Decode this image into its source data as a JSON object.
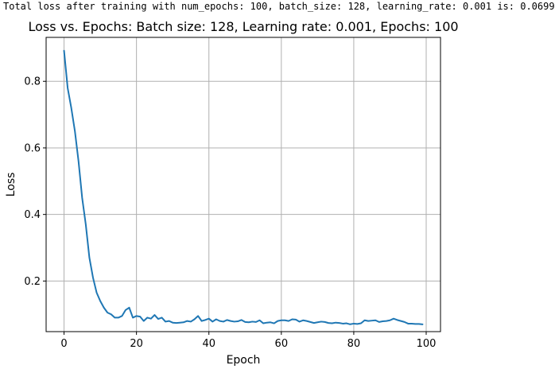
{
  "console_output": "Total loss after training with num_epochs: 100, batch_size: 128, learning_rate: 0.001 is: 0.0699",
  "chart_data": {
    "type": "line",
    "title": "Loss vs. Epochs: Batch size: 128, Learning rate: 0.001, Epochs: 100",
    "xlabel": "Epoch",
    "ylabel": "Loss",
    "xlim": [
      -4.95,
      103.95
    ],
    "ylim": [
      0.048,
      0.932
    ],
    "xticks": [
      0,
      20,
      40,
      60,
      80,
      100
    ],
    "yticks": [
      0.2,
      0.4,
      0.6,
      0.8
    ],
    "xtick_labels": [
      "0",
      "20",
      "40",
      "60",
      "80",
      "100"
    ],
    "ytick_labels": [
      "0.2",
      "0.4",
      "0.6",
      "0.8"
    ],
    "grid": true,
    "legend": false,
    "line_color": "#1f77b4",
    "series": [
      {
        "x": [
          0,
          1,
          2,
          3,
          4,
          5,
          6,
          7,
          8,
          9,
          10,
          11,
          12,
          13,
          14,
          15,
          16,
          17,
          18,
          19,
          20,
          21,
          22,
          23,
          24,
          25,
          26,
          27,
          28,
          29,
          30,
          31,
          32,
          33,
          34,
          35,
          36,
          37,
          38,
          39,
          40,
          41,
          42,
          43,
          44,
          45,
          46,
          47,
          48,
          49,
          50,
          51,
          52,
          53,
          54,
          55,
          56,
          57,
          58,
          59,
          60,
          61,
          62,
          63,
          64,
          65,
          66,
          67,
          68,
          69,
          70,
          71,
          72,
          73,
          74,
          75,
          76,
          77,
          78,
          79,
          80,
          81,
          82,
          83,
          84,
          85,
          86,
          87,
          88,
          89,
          90,
          91,
          92,
          93,
          94,
          95,
          96,
          97,
          98,
          99
        ],
        "values": [
          0.892,
          0.78,
          0.72,
          0.65,
          0.56,
          0.45,
          0.37,
          0.27,
          0.21,
          0.165,
          0.14,
          0.12,
          0.105,
          0.1,
          0.09,
          0.09,
          0.095,
          0.113,
          0.12,
          0.09,
          0.095,
          0.093,
          0.08,
          0.09,
          0.087,
          0.098,
          0.086,
          0.09,
          0.078,
          0.08,
          0.075,
          0.074,
          0.075,
          0.076,
          0.08,
          0.078,
          0.085,
          0.095,
          0.08,
          0.083,
          0.087,
          0.078,
          0.085,
          0.08,
          0.078,
          0.083,
          0.08,
          0.078,
          0.079,
          0.083,
          0.077,
          0.076,
          0.078,
          0.077,
          0.082,
          0.073,
          0.075,
          0.076,
          0.073,
          0.08,
          0.082,
          0.082,
          0.08,
          0.085,
          0.084,
          0.078,
          0.082,
          0.08,
          0.077,
          0.074,
          0.076,
          0.078,
          0.077,
          0.074,
          0.073,
          0.075,
          0.074,
          0.072,
          0.073,
          0.07,
          0.072,
          0.071,
          0.073,
          0.082,
          0.08,
          0.081,
          0.082,
          0.077,
          0.079,
          0.08,
          0.082,
          0.087,
          0.083,
          0.08,
          0.077,
          0.072,
          0.072,
          0.071,
          0.071,
          0.0699
        ]
      }
    ]
  }
}
